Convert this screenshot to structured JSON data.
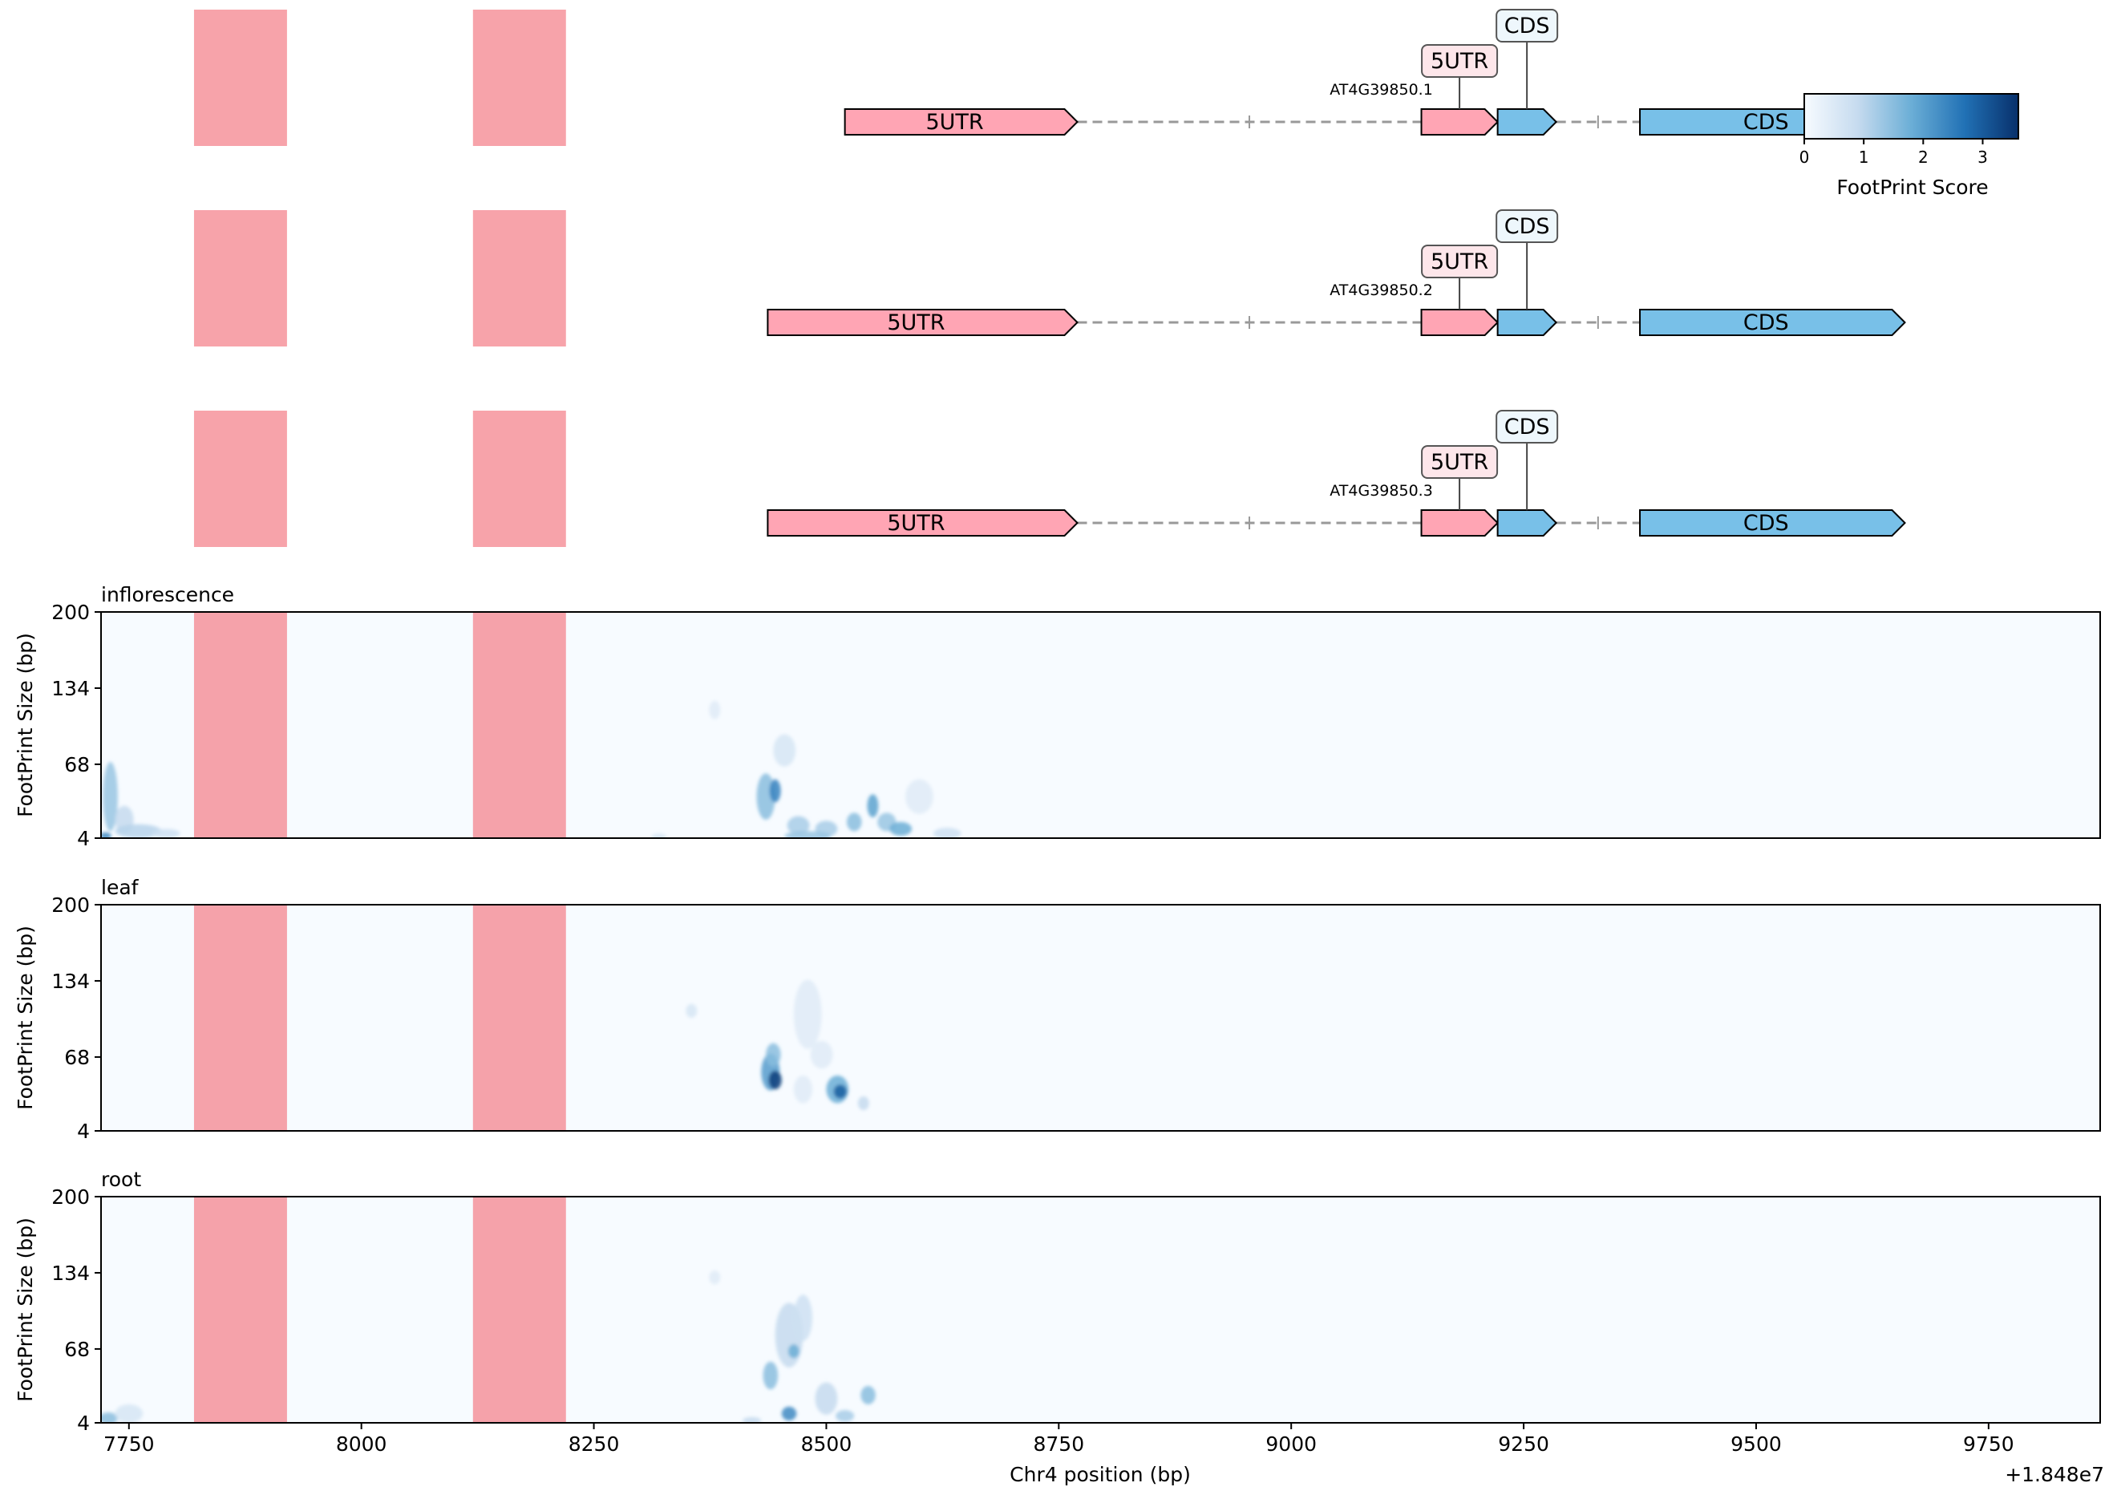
{
  "figure": {
    "x_axis_label": "Chr4 position (bp)",
    "x_offset_label": "+1.848e7",
    "y_axis_label": "FootPrint Size (bp)"
  },
  "colors": {
    "utr": "#ffa5b4",
    "cds": "#78c0e8",
    "highlight": "#f47c86",
    "heatmap_bg": "#f7fbff",
    "heat_low": "#deebf7",
    "heat_mid": "#6baed6",
    "heat_high": "#08306b",
    "intron": "#999999"
  },
  "chart_data": {
    "type": "heatmap",
    "x_range": [
      7720,
      9870
    ],
    "x_ticks": [
      7750,
      8000,
      8250,
      8500,
      8750,
      9000,
      9250,
      9500,
      9750
    ],
    "x_tick_labels": [
      "7750",
      "8000",
      "8250",
      "8500",
      "8750",
      "9000",
      "9250",
      "9500",
      "9750"
    ],
    "y_range": [
      4,
      200
    ],
    "y_ticks": [
      4,
      68,
      134,
      200
    ],
    "y_tick_labels": [
      "4",
      "68",
      "134",
      "200"
    ],
    "highlight_regions": [
      [
        7820,
        7920
      ],
      [
        8120,
        8220
      ]
    ],
    "colorbar": {
      "label": "FootPrint Score",
      "range": [
        0,
        3.6
      ],
      "ticks": [
        0,
        1,
        2,
        3
      ],
      "tick_labels": [
        "0",
        "1",
        "2",
        "3"
      ]
    },
    "transcripts": [
      {
        "name": "AT4G39850.1",
        "features": [
          {
            "type": "5UTR",
            "start": 8520,
            "end": 8770,
            "label": "5UTR"
          },
          {
            "type": "5UTR",
            "start": 9140,
            "end": 9222,
            "label": "5UTR",
            "callout": true
          },
          {
            "type": "CDS",
            "start": 9222,
            "end": 9285,
            "label": "CDS",
            "callout": true
          },
          {
            "type": "CDS",
            "start": 9375,
            "end": 9660,
            "label": "CDS"
          }
        ],
        "introns": [
          [
            8770,
            9140
          ],
          [
            9285,
            9375
          ]
        ]
      },
      {
        "name": "AT4G39850.2",
        "features": [
          {
            "type": "5UTR",
            "start": 8437,
            "end": 8770,
            "label": "5UTR"
          },
          {
            "type": "5UTR",
            "start": 9140,
            "end": 9222,
            "label": "5UTR",
            "callout": true
          },
          {
            "type": "CDS",
            "start": 9222,
            "end": 9285,
            "label": "CDS",
            "callout": true
          },
          {
            "type": "CDS",
            "start": 9375,
            "end": 9660,
            "label": "CDS"
          }
        ],
        "introns": [
          [
            8770,
            9140
          ],
          [
            9285,
            9375
          ]
        ]
      },
      {
        "name": "AT4G39850.3",
        "features": [
          {
            "type": "5UTR",
            "start": 8437,
            "end": 8770,
            "label": "5UTR"
          },
          {
            "type": "5UTR",
            "start": 9140,
            "end": 9222,
            "label": "5UTR",
            "callout": true
          },
          {
            "type": "CDS",
            "start": 9222,
            "end": 9285,
            "label": "CDS",
            "callout": true
          },
          {
            "type": "CDS",
            "start": 9375,
            "end": 9660,
            "label": "CDS"
          }
        ],
        "introns": [
          [
            8770,
            9140
          ],
          [
            9285,
            9375
          ]
        ]
      }
    ],
    "panels": [
      {
        "title": "inflorescence",
        "blobs": [
          {
            "x": 7730,
            "y": 40,
            "wx": 8,
            "wy": 30,
            "v": 0.9
          },
          {
            "x": 7745,
            "y": 20,
            "wx": 10,
            "wy": 12,
            "v": 0.6
          },
          {
            "x": 7760,
            "y": 10,
            "wx": 25,
            "wy": 6,
            "v": 0.7
          },
          {
            "x": 7725,
            "y": 6,
            "wx": 6,
            "wy": 3,
            "v": 1.8
          },
          {
            "x": 7790,
            "y": 8,
            "wx": 15,
            "wy": 4,
            "v": 0.5
          },
          {
            "x": 8435,
            "y": 40,
            "wx": 10,
            "wy": 20,
            "v": 1.0
          },
          {
            "x": 8445,
            "y": 45,
            "wx": 6,
            "wy": 10,
            "v": 1.9
          },
          {
            "x": 8455,
            "y": 80,
            "wx": 12,
            "wy": 14,
            "v": 0.4
          },
          {
            "x": 8380,
            "y": 115,
            "wx": 6,
            "wy": 8,
            "v": 0.3
          },
          {
            "x": 8470,
            "y": 15,
            "wx": 12,
            "wy": 8,
            "v": 0.8
          },
          {
            "x": 8500,
            "y": 12,
            "wx": 12,
            "wy": 7,
            "v": 0.8
          },
          {
            "x": 8530,
            "y": 18,
            "wx": 8,
            "wy": 8,
            "v": 1.0
          },
          {
            "x": 8550,
            "y": 32,
            "wx": 6,
            "wy": 10,
            "v": 1.4
          },
          {
            "x": 8565,
            "y": 18,
            "wx": 10,
            "wy": 8,
            "v": 0.9
          },
          {
            "x": 8580,
            "y": 12,
            "wx": 12,
            "wy": 6,
            "v": 1.2
          },
          {
            "x": 8600,
            "y": 40,
            "wx": 15,
            "wy": 15,
            "v": 0.3
          },
          {
            "x": 8630,
            "y": 8,
            "wx": 15,
            "wy": 5,
            "v": 0.5
          },
          {
            "x": 8480,
            "y": 6,
            "wx": 25,
            "wy": 4,
            "v": 0.9
          },
          {
            "x": 8320,
            "y": 5,
            "wx": 8,
            "wy": 3,
            "v": 0.4
          }
        ]
      },
      {
        "title": "leaf",
        "blobs": [
          {
            "x": 8440,
            "y": 55,
            "wx": 10,
            "wy": 16,
            "v": 1.5
          },
          {
            "x": 8445,
            "y": 48,
            "wx": 7,
            "wy": 8,
            "v": 3.3
          },
          {
            "x": 8443,
            "y": 70,
            "wx": 8,
            "wy": 10,
            "v": 1.0
          },
          {
            "x": 8512,
            "y": 40,
            "wx": 12,
            "wy": 12,
            "v": 1.2
          },
          {
            "x": 8515,
            "y": 38,
            "wx": 7,
            "wy": 6,
            "v": 2.6
          },
          {
            "x": 8480,
            "y": 105,
            "wx": 15,
            "wy": 30,
            "v": 0.3
          },
          {
            "x": 8355,
            "y": 108,
            "wx": 6,
            "wy": 6,
            "v": 0.4
          },
          {
            "x": 8495,
            "y": 70,
            "wx": 12,
            "wy": 12,
            "v": 0.3
          },
          {
            "x": 8475,
            "y": 40,
            "wx": 10,
            "wy": 12,
            "v": 0.3
          },
          {
            "x": 8540,
            "y": 28,
            "wx": 6,
            "wy": 6,
            "v": 0.6
          }
        ]
      },
      {
        "title": "root",
        "blobs": [
          {
            "x": 8460,
            "y": 80,
            "wx": 15,
            "wy": 28,
            "v": 0.6
          },
          {
            "x": 8475,
            "y": 95,
            "wx": 10,
            "wy": 20,
            "v": 0.5
          },
          {
            "x": 8440,
            "y": 45,
            "wx": 8,
            "wy": 12,
            "v": 1.0
          },
          {
            "x": 8465,
            "y": 66,
            "wx": 6,
            "wy": 6,
            "v": 1.2
          },
          {
            "x": 8460,
            "y": 12,
            "wx": 8,
            "wy": 6,
            "v": 1.8
          },
          {
            "x": 8500,
            "y": 25,
            "wx": 12,
            "wy": 14,
            "v": 0.6
          },
          {
            "x": 8545,
            "y": 28,
            "wx": 8,
            "wy": 8,
            "v": 1.0
          },
          {
            "x": 8520,
            "y": 10,
            "wx": 10,
            "wy": 5,
            "v": 0.8
          },
          {
            "x": 8420,
            "y": 6,
            "wx": 10,
            "wy": 3,
            "v": 0.6
          },
          {
            "x": 8380,
            "y": 130,
            "wx": 6,
            "wy": 6,
            "v": 0.3
          },
          {
            "x": 7728,
            "y": 8,
            "wx": 10,
            "wy": 5,
            "v": 1.0
          },
          {
            "x": 7750,
            "y": 12,
            "wx": 15,
            "wy": 8,
            "v": 0.4
          }
        ]
      }
    ]
  }
}
